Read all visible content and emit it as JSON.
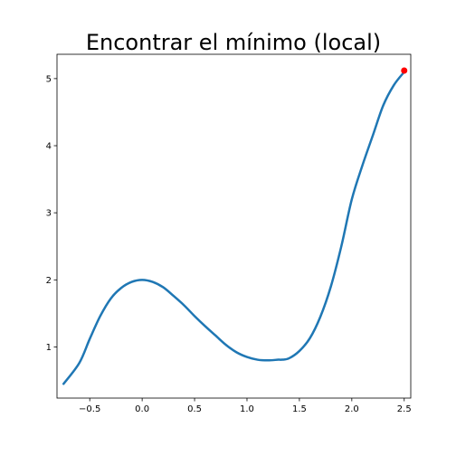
{
  "chart_data": {
    "type": "line",
    "title": "Encontrar el mínimo (local)",
    "xlabel": "",
    "ylabel": "",
    "xlim": [
      -0.8125,
      2.5625
    ],
    "ylim": [
      0.2375,
      5.3625
    ],
    "x_ticks": [
      -0.5,
      0.0,
      0.5,
      1.0,
      1.5,
      2.0,
      2.5
    ],
    "x_tick_labels": [
      "−0.5",
      "0.0",
      "0.5",
      "1.0",
      "1.5",
      "2.0",
      "2.5"
    ],
    "y_ticks": [
      1,
      2,
      3,
      4,
      5
    ],
    "y_tick_labels": [
      "1",
      "2",
      "3",
      "4",
      "5"
    ],
    "grid": false,
    "series": [
      {
        "color": "#1f77b4",
        "x": [
          -0.75,
          -0.6,
          -0.5,
          -0.4,
          -0.3,
          -0.2,
          -0.1,
          0.0,
          0.1,
          0.2,
          0.3,
          0.4,
          0.5,
          0.6,
          0.7,
          0.8,
          0.9,
          1.0,
          1.1,
          1.2,
          1.3,
          1.333,
          1.4,
          1.5,
          1.6,
          1.7,
          1.8,
          1.9,
          2.0,
          2.1,
          2.2,
          2.3,
          2.4,
          2.5
        ],
        "y": [
          0.45,
          0.76,
          1.12,
          1.46,
          1.72,
          1.88,
          1.97,
          2.0,
          1.97,
          1.89,
          1.76,
          1.62,
          1.46,
          1.31,
          1.17,
          1.03,
          0.92,
          0.85,
          0.81,
          0.8,
          0.81,
          0.81,
          0.83,
          0.94,
          1.13,
          1.45,
          1.9,
          2.5,
          3.2,
          3.7,
          4.15,
          4.6,
          4.9,
          5.1
        ]
      }
    ],
    "marker": {
      "x": 2.5,
      "y": 5.12,
      "color": "#ff0000"
    }
  }
}
